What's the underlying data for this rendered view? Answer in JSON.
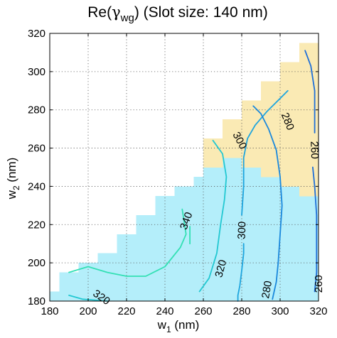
{
  "chart_data": {
    "type": "contour",
    "title": {
      "prefix": "Re(",
      "greek": "γ",
      "sub": "wg",
      "suffix": ") (Slot size: 140 nm)"
    },
    "xlabel": {
      "main": "w",
      "sub": "1",
      "unit": " (nm)"
    },
    "ylabel": {
      "main": "w",
      "sub": "2",
      "unit": " (nm)"
    },
    "xlim": [
      180,
      320
    ],
    "ylim": [
      180,
      320
    ],
    "xticks": [
      "180",
      "200",
      "220",
      "240",
      "260",
      "280",
      "300",
      "320"
    ],
    "yticks": [
      "180",
      "200",
      "220",
      "240",
      "260",
      "280",
      "300",
      "320"
    ],
    "grid": true,
    "cell_size": 5,
    "region_colors": {
      "single_mode": "#b4eefa",
      "multi_mode": "#faeab4",
      "background": "#ffffff"
    },
    "light_blue_region": [
      [
        180,
        185,
        180,
        185
      ],
      [
        185,
        195,
        180,
        195
      ],
      [
        195,
        205,
        180,
        200
      ],
      [
        205,
        215,
        180,
        205
      ],
      [
        215,
        225,
        180,
        215
      ],
      [
        225,
        235,
        180,
        225
      ],
      [
        235,
        245,
        180,
        235
      ],
      [
        245,
        255,
        180,
        240
      ],
      [
        255,
        260,
        180,
        245
      ],
      [
        260,
        270,
        180,
        265
      ],
      [
        270,
        280,
        180,
        255
      ],
      [
        280,
        290,
        180,
        250
      ],
      [
        290,
        300,
        180,
        245
      ],
      [
        300,
        310,
        180,
        240
      ],
      [
        310,
        320,
        180,
        235
      ]
    ],
    "yellow_region": [
      [
        260,
        270,
        250,
        265
      ],
      [
        270,
        280,
        255,
        275
      ],
      [
        280,
        290,
        250,
        285
      ],
      [
        290,
        300,
        245,
        295
      ],
      [
        300,
        310,
        240,
        305
      ],
      [
        310,
        320,
        235,
        315
      ]
    ],
    "contours": [
      {
        "level": "340",
        "color": "#33e0b4",
        "points": [
          [
            190,
            195
          ],
          [
            200,
            198
          ],
          [
            210,
            195
          ],
          [
            220,
            193
          ],
          [
            230,
            193
          ],
          [
            240,
            198
          ],
          [
            248,
            208
          ],
          [
            251,
            215
          ],
          [
            249,
            228
          ]
        ]
      },
      {
        "level": "340",
        "color": "#33e0b4",
        "points": [
          [
            253,
            219
          ],
          [
            253,
            210
          ]
        ]
      },
      {
        "level": "320",
        "color": "#22c8d2",
        "points": [
          [
            190,
            183
          ],
          [
            197,
            181
          ],
          [
            210,
            180
          ]
        ]
      },
      {
        "level": "320",
        "color": "#22c8d2",
        "points": [
          [
            258,
            185
          ],
          [
            263,
            192
          ],
          [
            267,
            205
          ],
          [
            269,
            220
          ],
          [
            271,
            233
          ],
          [
            272,
            245
          ],
          [
            270,
            257
          ],
          [
            265,
            264
          ]
        ]
      },
      {
        "level": "300",
        "color": "#1ea5de",
        "points": [
          [
            281,
            210
          ],
          [
            281,
            205
          ],
          [
            280,
            196
          ],
          [
            279,
            188
          ],
          [
            278,
            183
          ],
          [
            278,
            180
          ]
        ]
      },
      {
        "level": "300",
        "color": "#1ea5de",
        "points": [
          [
            280,
            225
          ],
          [
            281,
            240
          ],
          [
            281,
            255
          ],
          [
            283,
            265
          ],
          [
            287,
            272
          ],
          [
            293,
            279
          ],
          [
            299,
            285
          ],
          [
            304,
            290
          ]
        ]
      },
      {
        "level": "280",
        "color": "#1a88dc",
        "points": [
          [
            296,
            181
          ],
          [
            298,
            190
          ],
          [
            299,
            200
          ],
          [
            300,
            215
          ],
          [
            301,
            230
          ],
          [
            300,
            245
          ],
          [
            298,
            259
          ],
          [
            294,
            270
          ],
          [
            290,
            278
          ],
          [
            286,
            282
          ]
        ]
      },
      {
        "level": "260",
        "color": "#1f6fd8",
        "points": [
          [
            318,
            185
          ],
          [
            319,
            195
          ],
          [
            319,
            210
          ],
          [
            319,
            225
          ],
          [
            318,
            240
          ],
          [
            317,
            250
          ]
        ]
      },
      {
        "level": "260",
        "color": "#1f6fd8",
        "points": [
          [
            318,
            268
          ],
          [
            318,
            290
          ],
          [
            316,
            303
          ],
          [
            313,
            311
          ]
        ]
      }
    ],
    "contour_labels": [
      {
        "text": "340",
        "x": 251,
        "y": 222,
        "angle": -70
      },
      {
        "text": "320",
        "x": 207,
        "y": 182,
        "angle": 35
      },
      {
        "text": "320",
        "x": 269,
        "y": 197,
        "angle": -75
      },
      {
        "text": "300",
        "x": 280,
        "y": 217,
        "angle": -88
      },
      {
        "text": "300",
        "x": 279,
        "y": 264,
        "angle": 62
      },
      {
        "text": "280",
        "x": 293,
        "y": 186,
        "angle": -80
      },
      {
        "text": "280",
        "x": 304,
        "y": 274,
        "angle": 68
      },
      {
        "text": "260",
        "x": 320,
        "y": 189,
        "angle": -90
      },
      {
        "text": "260",
        "x": 318,
        "y": 259,
        "angle": 88
      }
    ]
  }
}
